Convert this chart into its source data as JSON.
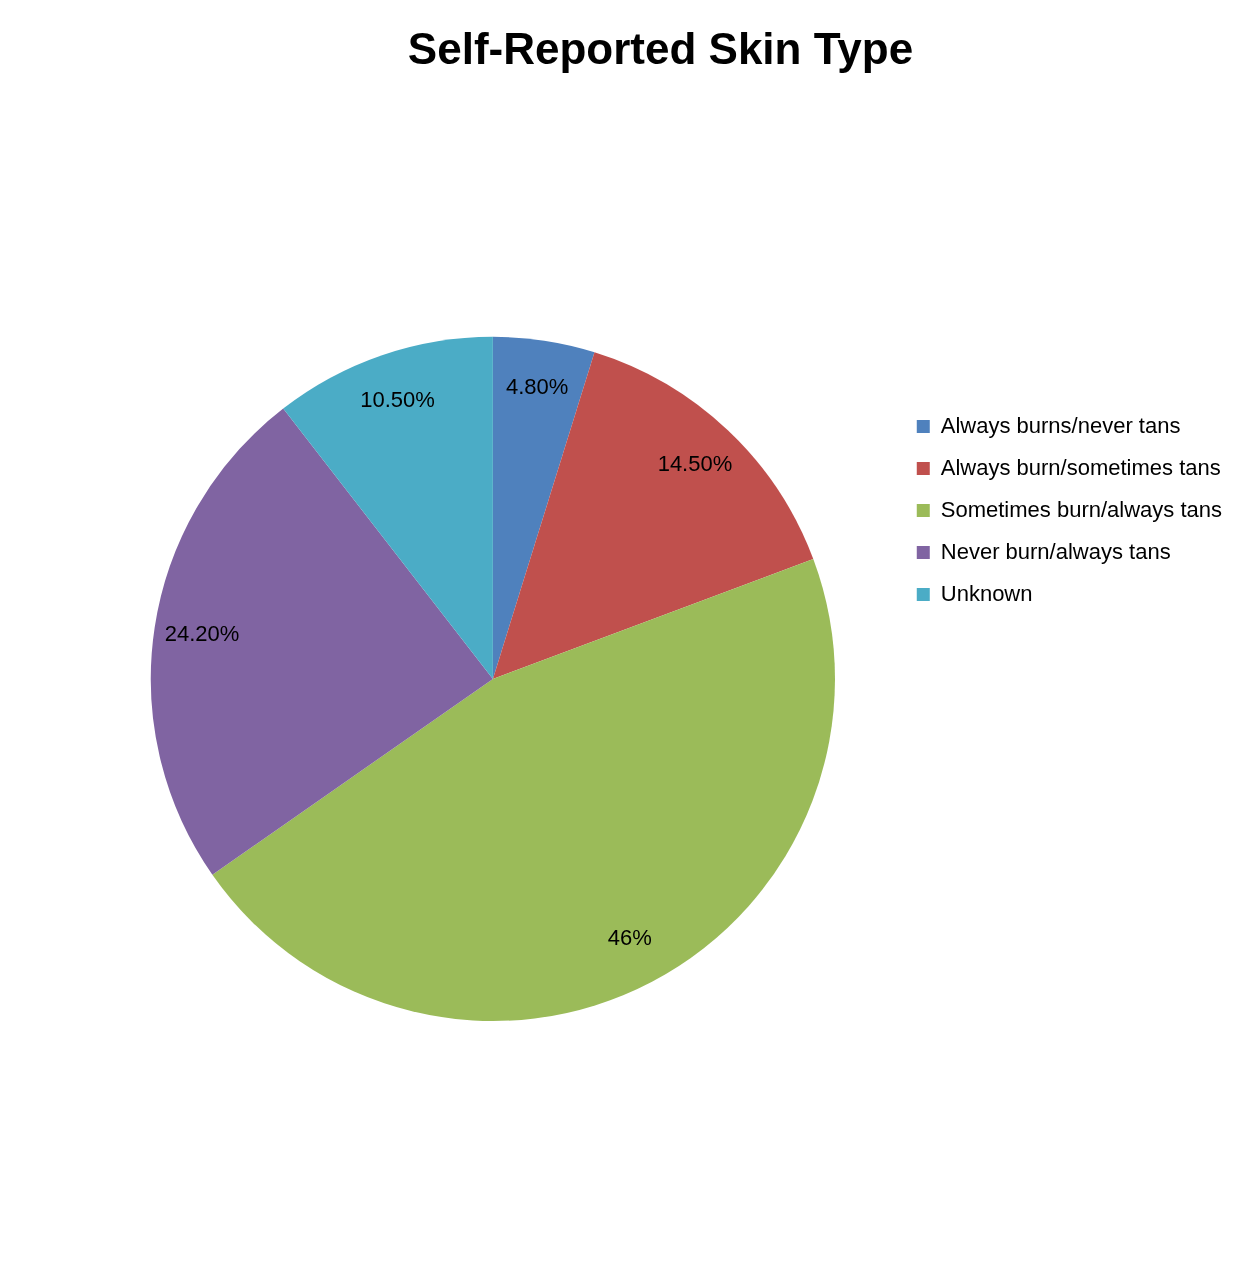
{
  "chart_data": {
    "type": "pie",
    "title": "Self-Reported Skin Type",
    "categories": [
      "Always burns/never tans",
      "Always burn/sometimes tans",
      "Sometimes burn/always tans",
      "Never burn/always tans",
      "Unknown"
    ],
    "values": [
      4.8,
      14.5,
      46,
      24.2,
      10.5
    ],
    "value_labels": [
      "4.80%",
      "14.50%",
      "46%",
      "24.20%",
      "10.50%"
    ],
    "colors": [
      "#4f81bd",
      "#c0504d",
      "#9bbb59",
      "#8064a2",
      "#4bacc6"
    ],
    "legend": "right"
  }
}
